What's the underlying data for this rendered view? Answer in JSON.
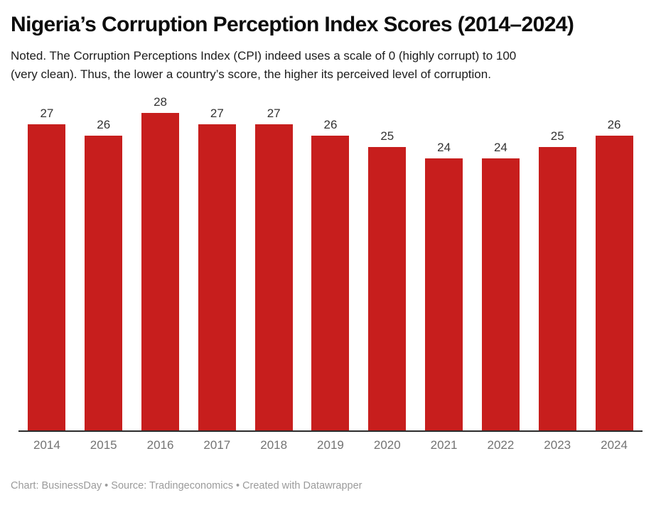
{
  "header": {
    "title": "Nigeria’s Corruption Perception Index Scores (2014–2024)",
    "subtitle": "Noted. The Corruption Perceptions Index (CPI) indeed uses a scale of 0 (highly corrupt) to 100 (very clean). Thus, the lower a country’s score, the higher its perceived level of corruption.",
    "subtitle_lines": [
      "Noted. The Corruption Perceptions Index (CPI) indeed uses a scale of 0 (highly corrupt) to 100",
      "(very clean). Thus, the lower a country’s score, the higher its perceived level of corruption."
    ]
  },
  "chart_data": {
    "type": "bar",
    "title": "Nigeria’s Corruption Perception Index Scores (2014–2024)",
    "categories": [
      "2014",
      "2015",
      "2016",
      "2017",
      "2018",
      "2019",
      "2020",
      "2021",
      "2022",
      "2023",
      "2024"
    ],
    "values": [
      27,
      26,
      28,
      27,
      27,
      26,
      25,
      24,
      24,
      25,
      26
    ],
    "xlabel": "",
    "ylabel": "",
    "ylim": [
      0,
      29
    ],
    "grid": false,
    "legend": "none",
    "value_labels_shown": true,
    "bar_color": "#c71e1d"
  },
  "footer": {
    "text": "Chart: BusinessDay  • Source: Tradingeconomics • Created with Datawrapper"
  },
  "colors": {
    "background": "#ffffff",
    "bar": "#c71e1d",
    "title": "#0d0d0d",
    "subtitle": "#1c1c1c",
    "value_label": "#333333",
    "axis_line": "#2b2b2b",
    "year_label": "#737373",
    "footer": "#9b9b9b"
  }
}
